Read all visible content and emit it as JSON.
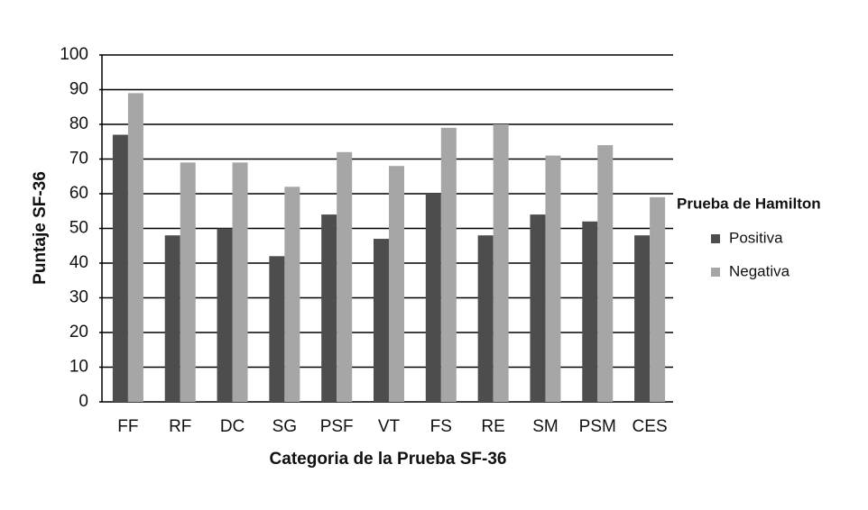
{
  "chart_data": {
    "type": "bar",
    "xlabel": "Categoria de la Prueba SF-36",
    "ylabel": "Puntaje SF-36",
    "legend_title": "Prueba de Hamilton",
    "legend_position": "right",
    "categories": [
      "FF",
      "RF",
      "DC",
      "SG",
      "PSF",
      "VT",
      "FS",
      "RE",
      "SM",
      "PSM",
      "CES"
    ],
    "series": [
      {
        "name": "Positiva",
        "color": "#4d4d4d",
        "values": [
          77,
          48,
          50,
          42,
          54,
          47,
          60,
          48,
          54,
          52,
          48
        ]
      },
      {
        "name": "Negativa",
        "color": "#a6a6a6",
        "values": [
          89,
          69,
          69,
          62,
          72,
          68,
          79,
          80,
          71,
          74,
          59
        ]
      }
    ],
    "ylim": [
      0,
      100
    ],
    "yticks": [
      0,
      10,
      20,
      30,
      40,
      50,
      60,
      70,
      80,
      90,
      100
    ],
    "grid": true
  }
}
